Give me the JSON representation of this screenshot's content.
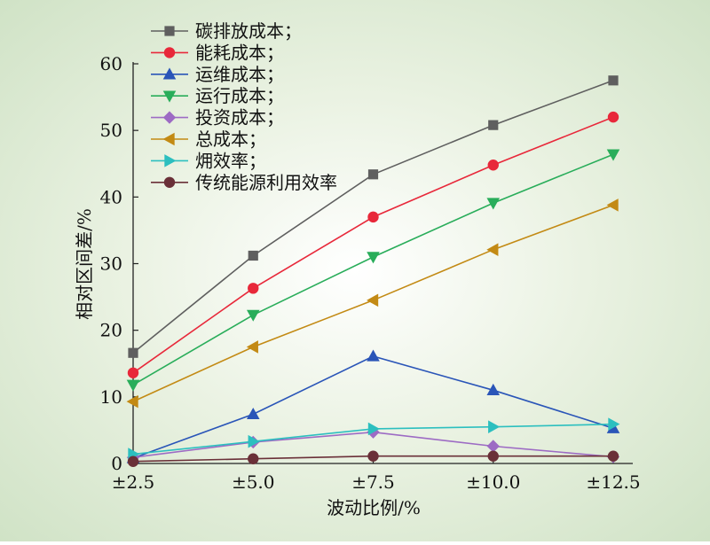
{
  "chart_data": {
    "type": "line",
    "xlabel": "波动比例/%",
    "ylabel": "相对区间差/%",
    "categories": [
      "±2.5",
      "±5.0",
      "±7.5",
      "±10.0",
      "±12.5"
    ],
    "ylim": [
      0,
      60
    ],
    "yticks": [
      0,
      10,
      20,
      30,
      40,
      50,
      60
    ],
    "grid": false,
    "legend_position": "top-left",
    "series": [
      {
        "name": "碳排放成本；",
        "color": "#5f5f5f",
        "marker": "square",
        "values": [
          16.6,
          31.2,
          43.4,
          50.8,
          57.5
        ]
      },
      {
        "name": "能耗成本；",
        "color": "#e8283a",
        "marker": "circle",
        "values": [
          13.6,
          26.3,
          37.0,
          44.8,
          52.0
        ]
      },
      {
        "name": "运维成本；",
        "color": "#2a55b8",
        "marker": "triangle-up",
        "values": [
          0.8,
          7.4,
          16.1,
          11.0,
          5.3
        ]
      },
      {
        "name": "运行成本；",
        "color": "#29ad5a",
        "marker": "triangle-down",
        "values": [
          11.8,
          22.3,
          31.0,
          39.1,
          46.4
        ]
      },
      {
        "name": "投资成本；",
        "color": "#9d6bc4",
        "marker": "diamond",
        "values": [
          0.9,
          3.2,
          4.7,
          2.6,
          1.0
        ]
      },
      {
        "name": "总成本；",
        "color": "#c38a14",
        "marker": "triangle-left",
        "values": [
          9.3,
          17.5,
          24.5,
          32.1,
          38.8
        ]
      },
      {
        "name": "㶲效率；",
        "color": "#2cbfbf",
        "marker": "triangle-right",
        "values": [
          1.4,
          3.3,
          5.2,
          5.5,
          5.9
        ]
      },
      {
        "name": "传统能源利用效率",
        "color": "#6a3038",
        "marker": "circle",
        "values": [
          0.3,
          0.7,
          1.1,
          1.1,
          1.1
        ]
      }
    ]
  }
}
